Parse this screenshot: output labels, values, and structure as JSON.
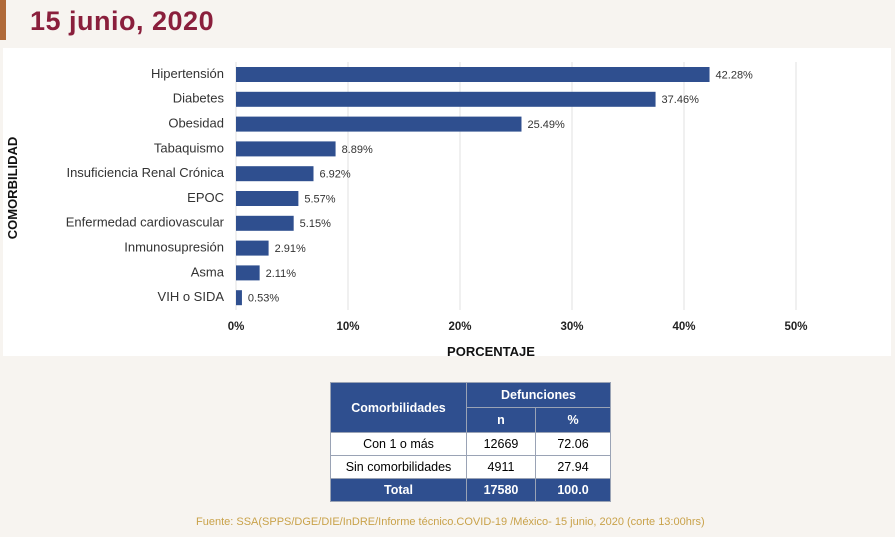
{
  "title": "15 junio, 2020",
  "chart_data": {
    "type": "bar",
    "orientation": "horizontal",
    "categories": [
      "Hipertensión",
      "Diabetes",
      "Obesidad",
      "Tabaquismo",
      "Insuficiencia Renal Crónica",
      "EPOC",
      "Enfermedad cardiovascular",
      "Inmunosupresión",
      "Asma",
      "VIH o SIDA"
    ],
    "values": [
      42.28,
      37.46,
      25.49,
      8.89,
      6.92,
      5.57,
      5.15,
      2.91,
      2.11,
      0.53
    ],
    "value_labels": [
      "42.28%",
      "37.46%",
      "25.49%",
      "8.89%",
      "6.92%",
      "5.57%",
      "5.15%",
      "2.91%",
      "2.11%",
      "0.53%"
    ],
    "xlim": [
      0,
      50
    ],
    "xticks": [
      "0%",
      "10%",
      "20%",
      "30%",
      "40%",
      "50%"
    ],
    "xlabel": "PORCENTAJE",
    "ylabel": "COMORBILIDAD",
    "grid": true,
    "bar_color": "#2f4f8f"
  },
  "table": {
    "col1_header": "Comorbilidades",
    "group_header": "Defunciones",
    "n_header": "n",
    "pct_header": "%",
    "rows": [
      {
        "label": "Con 1 o más",
        "n": "12669",
        "pct": "72.06"
      },
      {
        "label": "Sin comorbilidades",
        "n": "4911",
        "pct": "27.94"
      }
    ],
    "total": {
      "label": "Total",
      "n": "17580",
      "pct": "100.0"
    }
  },
  "source": "Fuente: SSA(SPPS/DGE/DIE/InDRE/Informe técnico.COVID-19 /México- 15 junio, 2020 (corte 13:00hrs)"
}
